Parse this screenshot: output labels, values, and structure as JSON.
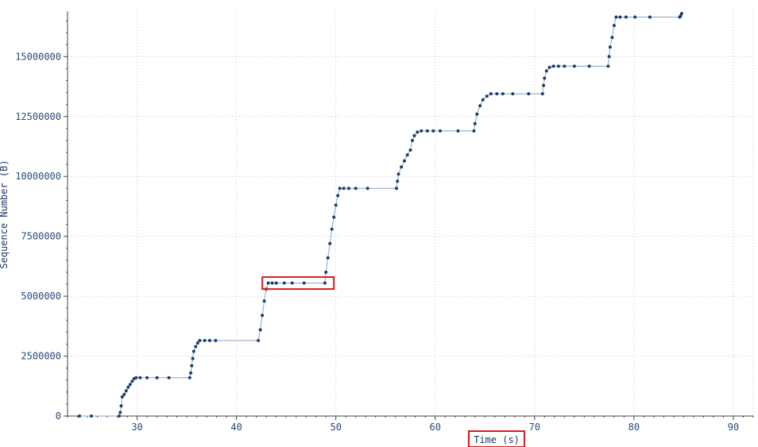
{
  "chart_data": {
    "type": "scatter",
    "title": "",
    "xlabel": "Time (s)",
    "ylabel": "Sequence Number (B)",
    "xlim": [
      23,
      92
    ],
    "ylim": [
      0,
      16900000
    ],
    "x_ticks": [
      30,
      40,
      50,
      60,
      70,
      80,
      90
    ],
    "y_ticks": [
      0,
      2500000,
      5000000,
      7500000,
      10000000,
      12500000,
      15000000
    ],
    "x_tick_labels": [
      "30",
      "40",
      "50",
      "60",
      "70",
      "80",
      "90"
    ],
    "y_tick_labels": [
      "0",
      "2500000",
      "5000000",
      "7500000",
      "10000000",
      "12500000",
      "15000000"
    ],
    "grid": true,
    "highlight_regions": [
      {
        "name": "flat-segment",
        "x": [
          42.6,
          49.8
        ],
        "y": [
          5300000,
          5800000
        ]
      }
    ],
    "series": [
      {
        "points": [
          [
            24.2,
            0
          ],
          [
            25.4,
            0
          ],
          [
            28.2,
            0
          ],
          [
            28.3,
            150000
          ],
          [
            28.4,
            420000
          ],
          [
            28.5,
            800000
          ],
          [
            28.7,
            900000
          ],
          [
            28.9,
            1050000
          ],
          [
            29.1,
            1200000
          ],
          [
            29.3,
            1320000
          ],
          [
            29.5,
            1450000
          ],
          [
            29.7,
            1560000
          ],
          [
            29.9,
            1600000
          ],
          [
            30.3,
            1600000
          ],
          [
            31.0,
            1600000
          ],
          [
            32.0,
            1600000
          ],
          [
            33.2,
            1600000
          ],
          [
            35.3,
            1600000
          ],
          [
            35.4,
            1800000
          ],
          [
            35.5,
            2100000
          ],
          [
            35.6,
            2400000
          ],
          [
            35.7,
            2700000
          ],
          [
            35.9,
            2900000
          ],
          [
            36.1,
            3050000
          ],
          [
            36.3,
            3150000
          ],
          [
            36.8,
            3150000
          ],
          [
            37.3,
            3150000
          ],
          [
            37.9,
            3150000
          ],
          [
            42.2,
            3150000
          ],
          [
            42.4,
            3600000
          ],
          [
            42.6,
            4200000
          ],
          [
            42.8,
            4800000
          ],
          [
            43.0,
            5300000
          ],
          [
            43.2,
            5550000
          ],
          [
            43.6,
            5550000
          ],
          [
            44.0,
            5550000
          ],
          [
            44.8,
            5550000
          ],
          [
            45.6,
            5550000
          ],
          [
            46.8,
            5550000
          ],
          [
            48.9,
            5550000
          ],
          [
            49.0,
            6000000
          ],
          [
            49.2,
            6600000
          ],
          [
            49.4,
            7200000
          ],
          [
            49.6,
            7800000
          ],
          [
            49.8,
            8300000
          ],
          [
            50.0,
            8800000
          ],
          [
            50.2,
            9200000
          ],
          [
            50.4,
            9500000
          ],
          [
            50.8,
            9500000
          ],
          [
            51.3,
            9500000
          ],
          [
            52.0,
            9500000
          ],
          [
            53.2,
            9500000
          ],
          [
            56.1,
            9500000
          ],
          [
            56.2,
            9800000
          ],
          [
            56.3,
            10100000
          ],
          [
            56.6,
            10400000
          ],
          [
            56.9,
            10650000
          ],
          [
            57.2,
            10900000
          ],
          [
            57.5,
            11100000
          ],
          [
            57.7,
            11500000
          ],
          [
            57.9,
            11700000
          ],
          [
            58.2,
            11850000
          ],
          [
            58.6,
            11900000
          ],
          [
            59.2,
            11900000
          ],
          [
            59.8,
            11900000
          ],
          [
            60.5,
            11900000
          ],
          [
            62.3,
            11900000
          ],
          [
            63.9,
            11900000
          ],
          [
            64.0,
            12200000
          ],
          [
            64.2,
            12600000
          ],
          [
            64.5,
            12950000
          ],
          [
            64.8,
            13200000
          ],
          [
            65.2,
            13350000
          ],
          [
            65.6,
            13450000
          ],
          [
            66.2,
            13450000
          ],
          [
            66.8,
            13450000
          ],
          [
            67.8,
            13450000
          ],
          [
            69.4,
            13450000
          ],
          [
            70.8,
            13450000
          ],
          [
            70.9,
            13800000
          ],
          [
            71.0,
            14100000
          ],
          [
            71.2,
            14400000
          ],
          [
            71.5,
            14550000
          ],
          [
            71.9,
            14600000
          ],
          [
            72.4,
            14600000
          ],
          [
            73.0,
            14600000
          ],
          [
            74.0,
            14600000
          ],
          [
            75.5,
            14600000
          ],
          [
            77.4,
            14600000
          ],
          [
            77.5,
            15000000
          ],
          [
            77.6,
            15400000
          ],
          [
            77.8,
            15800000
          ],
          [
            78.0,
            16300000
          ],
          [
            78.2,
            16650000
          ],
          [
            78.6,
            16650000
          ],
          [
            79.2,
            16650000
          ],
          [
            80.1,
            16650000
          ],
          [
            81.6,
            16650000
          ],
          [
            84.6,
            16650000
          ],
          [
            84.7,
            16700000
          ],
          [
            84.8,
            16800000
          ]
        ]
      }
    ]
  }
}
